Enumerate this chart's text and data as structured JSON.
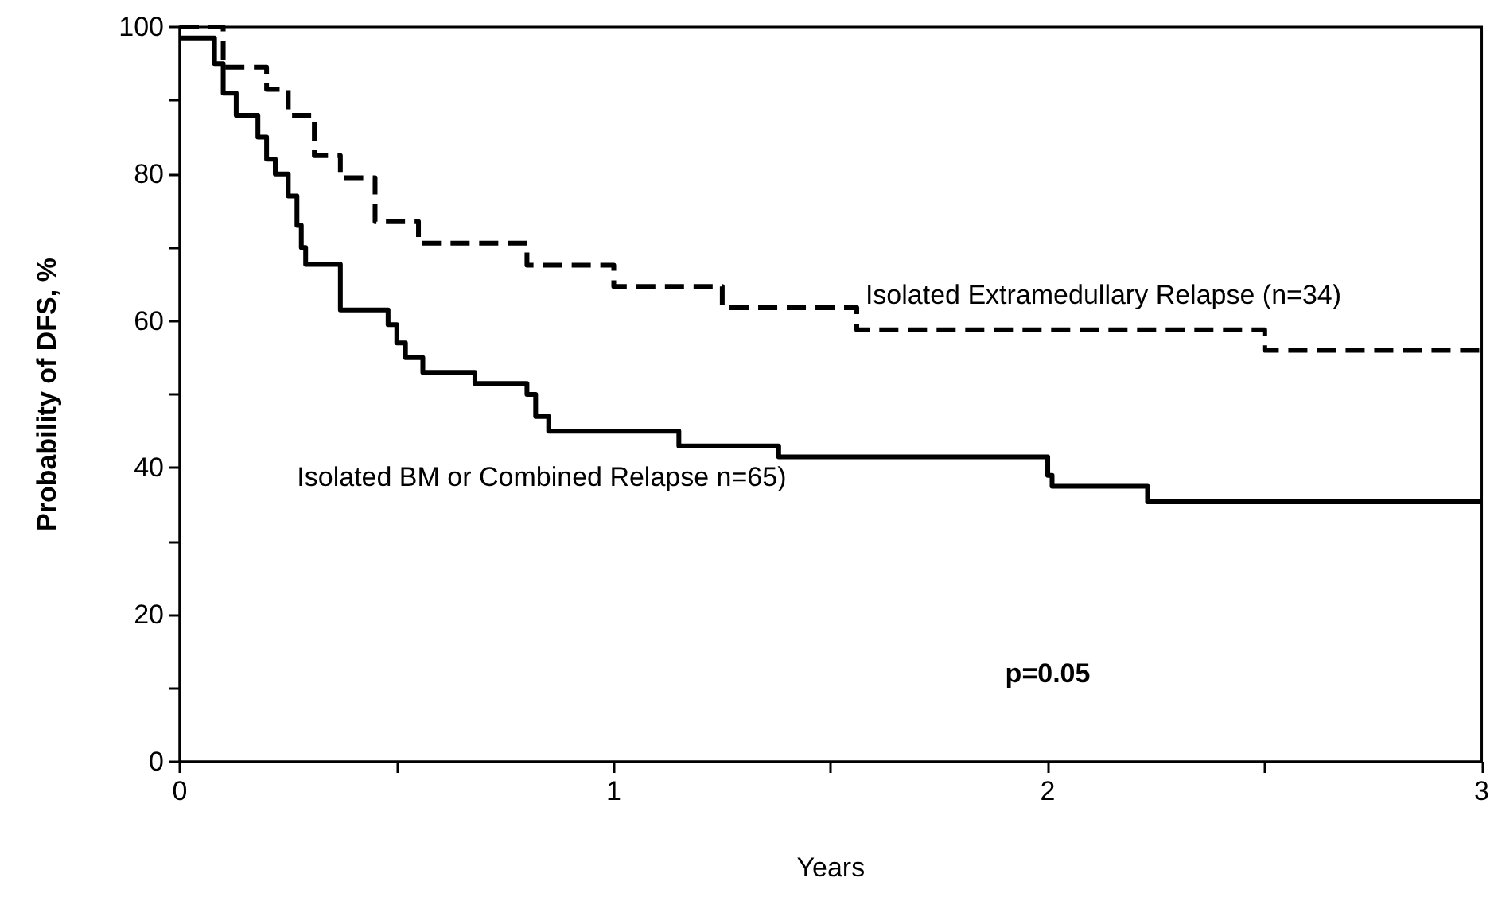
{
  "chart_data": {
    "type": "step",
    "xlabel": "Years",
    "ylabel": "Probability of DFS, %",
    "xlim": [
      0,
      3
    ],
    "xticks": [
      0,
      {
        "value": 0.5,
        "label": null
      },
      1,
      {
        "value": 1.5,
        "label": null
      },
      2,
      {
        "value": 2.5,
        "label": null
      },
      3
    ],
    "ylim": [
      0,
      100
    ],
    "yticks": [
      0,
      {
        "value": 10,
        "label": null
      },
      20,
      {
        "value": 30,
        "label": null
      },
      40,
      {
        "value": 50,
        "label": null
      },
      60,
      {
        "value": 70,
        "label": null
      },
      80,
      {
        "value": 90,
        "label": null
      },
      100
    ],
    "grid": false,
    "legend": false,
    "marker": "none",
    "annotations": [
      "p=0.05"
    ],
    "series": [
      {
        "name": "Isolated Extramedullary Relapse (n=34)",
        "color": "#000000",
        "line_style": "dashed",
        "x": [
          0,
          0.1,
          0.2,
          0.25,
          0.31,
          0.37,
          0.45,
          0.55,
          0.8,
          1.0,
          1.25,
          1.56,
          2.5,
          3
        ],
        "values": [
          100,
          94.5,
          91.5,
          88,
          82.5,
          79.5,
          73.5,
          70.6,
          67.6,
          64.7,
          61.8,
          58.8,
          56,
          56
        ]
      },
      {
        "name": "Isolated BM or Combined Relapse n=65)",
        "color": "#000000",
        "line_style": "solid",
        "x": [
          0,
          0.08,
          0.1,
          0.13,
          0.18,
          0.2,
          0.22,
          0.25,
          0.27,
          0.28,
          0.29,
          0.37,
          0.48,
          0.5,
          0.52,
          0.56,
          0.68,
          0.8,
          0.82,
          0.85,
          1.15,
          1.38,
          2.0,
          2.01,
          2.23,
          3
        ],
        "values": [
          98.5,
          95,
          91,
          88,
          85,
          82,
          80,
          77,
          73,
          70,
          67.7,
          61.5,
          59.5,
          57,
          55,
          53,
          51.5,
          50,
          47,
          45,
          43,
          41.5,
          39,
          37.5,
          35.4,
          35.4
        ]
      }
    ]
  }
}
